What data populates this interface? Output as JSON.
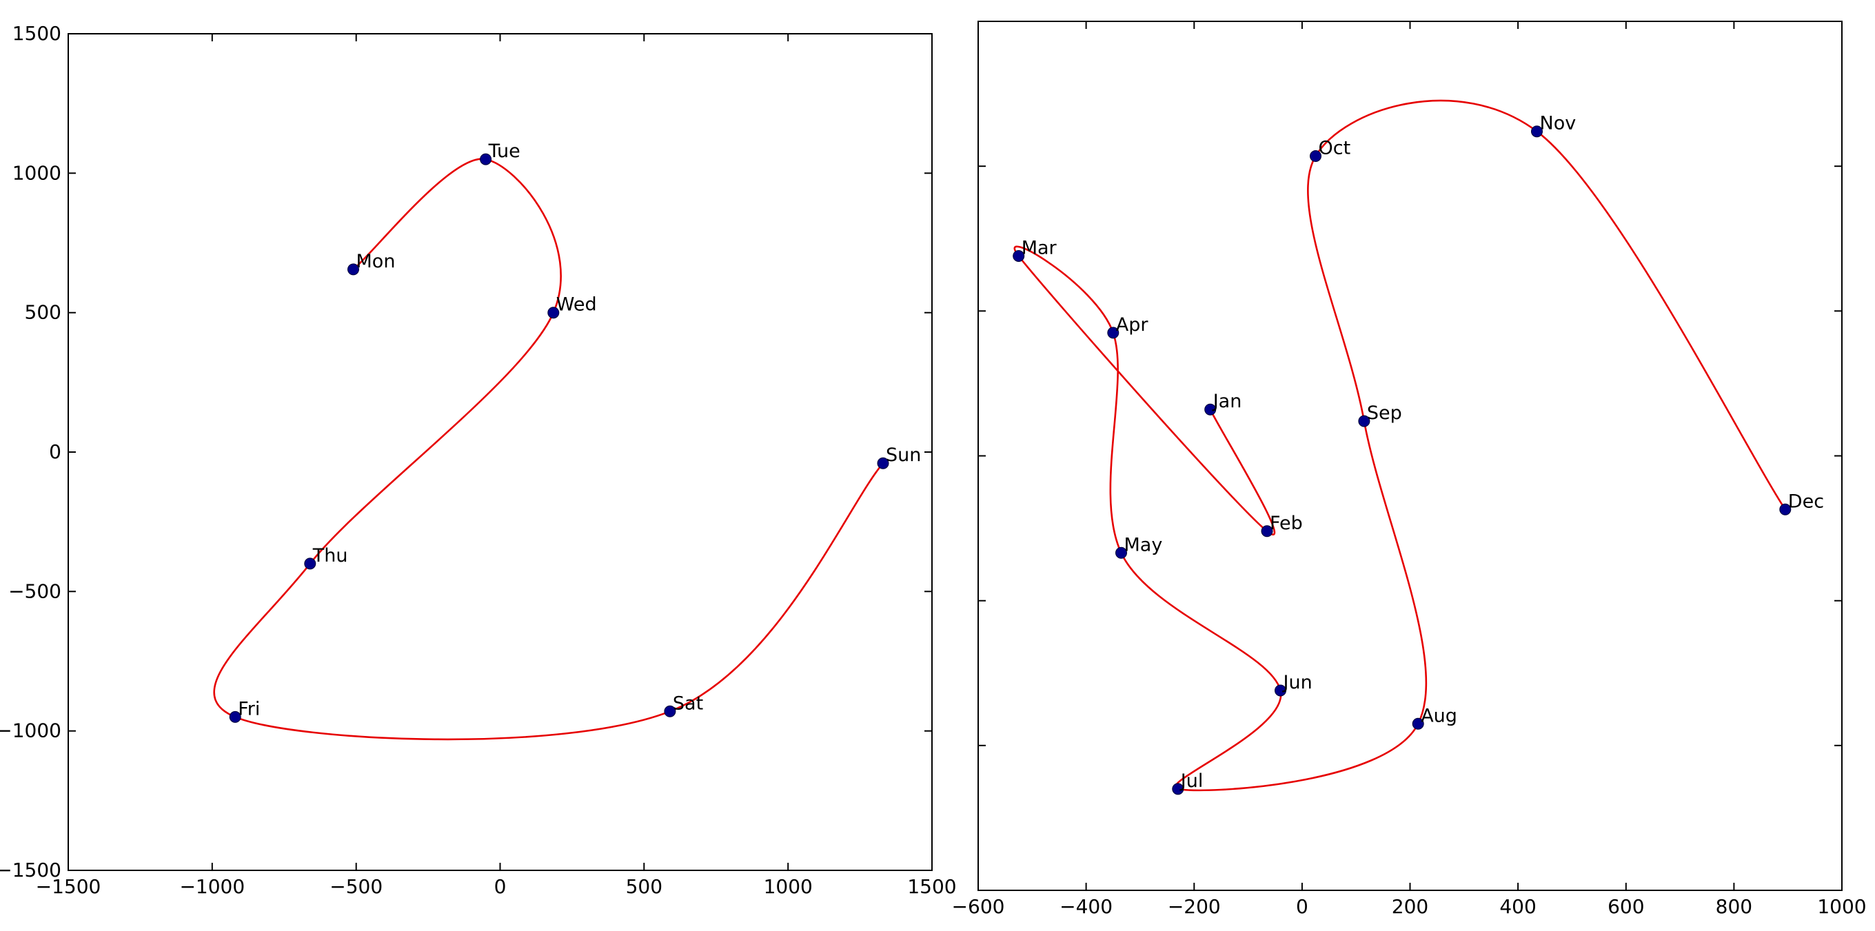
{
  "figure": {
    "background": "#ffffff",
    "description": "Two side-by-side spline plots with labeled scatter points"
  },
  "chart_data": [
    {
      "type": "scatter",
      "title": "",
      "xlabel": "",
      "ylabel": "",
      "legend": "none",
      "grid": false,
      "xlim": [
        -1500,
        1500
      ],
      "ylim": [
        -1500,
        1500
      ],
      "xticks": [
        -1500,
        -1000,
        -500,
        0,
        500,
        1000,
        1500
      ],
      "yticks": [
        -1500,
        -1000,
        -500,
        0,
        500,
        1000,
        1500
      ],
      "ytick_labels_visible": true,
      "line_color": "#e60000",
      "marker_color": "#00008b",
      "label_color": "#000000",
      "curve_order": [
        "Mon",
        "Tue",
        "Wed",
        "Thu",
        "Fri",
        "Sat",
        "Sun"
      ],
      "points": [
        {
          "label": "Mon",
          "x": -510,
          "y": 655
        },
        {
          "label": "Tue",
          "x": -50,
          "y": 1050
        },
        {
          "label": "Wed",
          "x": 185,
          "y": 500
        },
        {
          "label": "Thu",
          "x": -660,
          "y": -400
        },
        {
          "label": "Fri",
          "x": -920,
          "y": -950
        },
        {
          "label": "Sat",
          "x": 590,
          "y": -930
        },
        {
          "label": "Sun",
          "x": 1330,
          "y": -40
        }
      ]
    },
    {
      "type": "scatter",
      "title": "",
      "xlabel": "",
      "ylabel": "",
      "legend": "none",
      "grid": false,
      "xlim": [
        -600,
        1000
      ],
      "ylim": [
        -1500,
        1500
      ],
      "xticks": [
        -600,
        -400,
        -200,
        0,
        200,
        400,
        600,
        800,
        1000
      ],
      "yticks": [
        -1500,
        -1000,
        -500,
        0,
        500,
        1000,
        1500
      ],
      "ytick_labels_visible": false,
      "line_color": "#e60000",
      "marker_color": "#00008b",
      "label_color": "#000000",
      "curve_order": [
        "Jan",
        "Feb",
        "Mar",
        "Apr",
        "May",
        "Jun",
        "Jul",
        "Aug",
        "Sep",
        "Oct",
        "Nov",
        "Dec"
      ],
      "points": [
        {
          "label": "Jan",
          "x": -170,
          "y": 160
        },
        {
          "label": "Feb",
          "x": -65,
          "y": -260
        },
        {
          "label": "Mar",
          "x": -525,
          "y": 690
        },
        {
          "label": "Apr",
          "x": -350,
          "y": 425
        },
        {
          "label": "May",
          "x": -335,
          "y": -335
        },
        {
          "label": "Jun",
          "x": -40,
          "y": -810
        },
        {
          "label": "Jul",
          "x": -230,
          "y": -1150
        },
        {
          "label": "Aug",
          "x": 215,
          "y": -925
        },
        {
          "label": "Sep",
          "x": 115,
          "y": 120
        },
        {
          "label": "Oct",
          "x": 25,
          "y": 1035
        },
        {
          "label": "Nov",
          "x": 435,
          "y": 1120
        },
        {
          "label": "Dec",
          "x": 895,
          "y": -185
        }
      ]
    }
  ]
}
